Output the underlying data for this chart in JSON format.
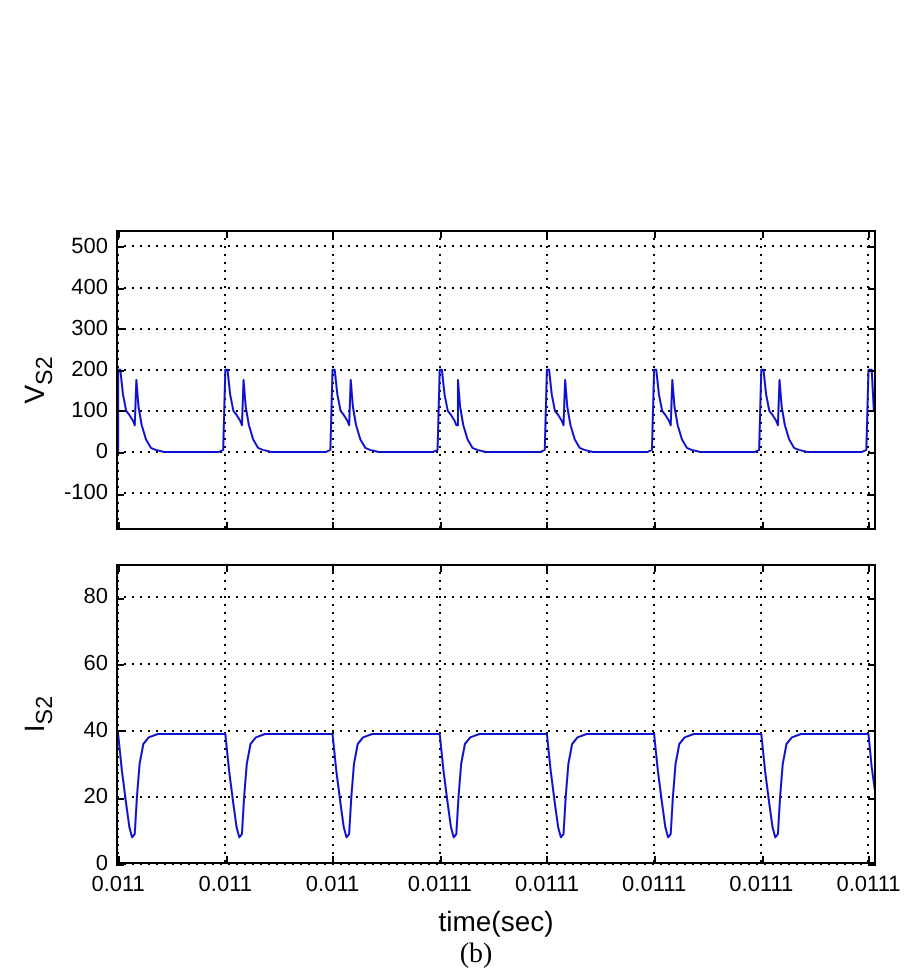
{
  "chart_data": [
    {
      "type": "line",
      "ylabel": "V$_{S2}$",
      "color": "#1010d0",
      "grid": true,
      "tick_labels": "y",
      "xlim": [
        0.0109996,
        0.0111414
      ],
      "xticks": [
        {
          "value": 0.011,
          "label": null
        },
        {
          "value": 0.01102,
          "label": null
        },
        {
          "value": 0.01104,
          "label": null
        },
        {
          "value": 0.01106,
          "label": null
        },
        {
          "value": 0.01108,
          "label": null
        },
        {
          "value": 0.0111,
          "label": null
        },
        {
          "value": 0.01112,
          "label": null
        },
        {
          "value": 0.01114,
          "label": null
        }
      ],
      "ylim": [
        -190,
        540
      ],
      "yticks": [
        -100,
        0,
        100,
        200,
        300,
        400,
        500
      ],
      "x": [
        0.0109996,
        0.011,
        0.011,
        0.0110004,
        0.0110009,
        0.0110015,
        0.0110021,
        0.0110028,
        0.0110031,
        0.0110034,
        0.0110038,
        0.0110044,
        0.0110052,
        0.0110061,
        0.011007,
        0.0110086,
        0.0110188,
        0.0110196,
        0.01102,
        0.0110204,
        0.0110209,
        0.0110215,
        0.0110221,
        0.0110228,
        0.0110231,
        0.0110234,
        0.0110238,
        0.0110244,
        0.0110252,
        0.0110261,
        0.011027,
        0.0110286,
        0.0110388,
        0.0110396,
        0.01104,
        0.0110404,
        0.0110409,
        0.0110415,
        0.0110421,
        0.0110428,
        0.0110431,
        0.0110434,
        0.0110438,
        0.0110444,
        0.0110452,
        0.0110461,
        0.011047,
        0.0110486,
        0.0110588,
        0.0110596,
        0.01106,
        0.0110604,
        0.0110609,
        0.0110615,
        0.0110621,
        0.0110628,
        0.0110631,
        0.0110634,
        0.0110638,
        0.0110644,
        0.0110652,
        0.0110661,
        0.011067,
        0.0110686,
        0.0110788,
        0.0110796,
        0.01108,
        0.0110804,
        0.0110809,
        0.0110815,
        0.0110821,
        0.0110828,
        0.0110831,
        0.0110834,
        0.0110838,
        0.0110844,
        0.0110852,
        0.0110861,
        0.011087,
        0.0110886,
        0.0110988,
        0.0110996,
        0.0111,
        0.0111004,
        0.0111009,
        0.0111015,
        0.0111021,
        0.0111028,
        0.0111031,
        0.0111034,
        0.0111038,
        0.0111044,
        0.0111052,
        0.0111061,
        0.011107,
        0.0111086,
        0.0111188,
        0.0111196,
        0.01112,
        0.0111204,
        0.0111209,
        0.0111215,
        0.0111221,
        0.0111228,
        0.0111231,
        0.0111234,
        0.0111238,
        0.0111244,
        0.0111252,
        0.0111261,
        0.011127,
        0.0111286,
        0.0111388,
        0.0111396,
        0.01114,
        0.0111406,
        0.011141,
        0.0111414
      ],
      "values": [
        0,
        0,
        200,
        200,
        140,
        100,
        90,
        75,
        65,
        175,
        110,
        65,
        30,
        10,
        5,
        0,
        0,
        5,
        200,
        200,
        140,
        100,
        90,
        75,
        65,
        175,
        110,
        65,
        30,
        10,
        5,
        0,
        0,
        5,
        200,
        200,
        140,
        100,
        90,
        75,
        65,
        175,
        110,
        65,
        30,
        10,
        5,
        0,
        0,
        5,
        200,
        200,
        140,
        100,
        90,
        75,
        65,
        175,
        110,
        65,
        30,
        10,
        5,
        0,
        0,
        5,
        200,
        200,
        140,
        100,
        90,
        75,
        65,
        175,
        110,
        65,
        30,
        10,
        5,
        0,
        0,
        5,
        200,
        200,
        140,
        100,
        90,
        75,
        65,
        175,
        110,
        65,
        30,
        10,
        5,
        0,
        0,
        5,
        200,
        200,
        140,
        100,
        90,
        75,
        65,
        175,
        110,
        65,
        30,
        10,
        5,
        0,
        0,
        5,
        200,
        200,
        100,
        100
      ]
    },
    {
      "type": "line",
      "ylabel": "I$_{S2}$",
      "xlabel": "time(sec)",
      "annotations": [
        "(b)"
      ],
      "color": "#1010d0",
      "grid": true,
      "xlim": [
        0.0109996,
        0.0111414
      ],
      "xticks": [
        {
          "value": 0.011,
          "label": "0.011"
        },
        {
          "value": 0.01102,
          "label": "0.011"
        },
        {
          "value": 0.01104,
          "label": "0.011"
        },
        {
          "value": 0.01106,
          "label": "0.0111"
        },
        {
          "value": 0.01108,
          "label": "0.0111"
        },
        {
          "value": 0.0111,
          "label": "0.0111"
        },
        {
          "value": 0.01112,
          "label": "0.0111"
        },
        {
          "value": 0.01114,
          "label": "0.0111"
        }
      ],
      "ylim": [
        0,
        90
      ],
      "yticks": [
        0,
        20,
        40,
        60,
        80
      ],
      "x": [
        0.0109996,
        0.011,
        0.0110007,
        0.0110015,
        0.0110021,
        0.0110026,
        0.0110031,
        0.0110035,
        0.011004,
        0.0110047,
        0.0110057,
        0.0110074,
        0.01102,
        0.0110207,
        0.0110215,
        0.0110221,
        0.0110226,
        0.0110231,
        0.0110235,
        0.011024,
        0.0110247,
        0.0110257,
        0.0110274,
        0.01104,
        0.0110407,
        0.0110415,
        0.0110421,
        0.0110426,
        0.0110431,
        0.0110435,
        0.011044,
        0.0110447,
        0.0110457,
        0.0110474,
        0.01106,
        0.0110607,
        0.0110615,
        0.0110621,
        0.0110626,
        0.0110631,
        0.0110635,
        0.011064,
        0.0110647,
        0.0110657,
        0.0110674,
        0.01108,
        0.0110807,
        0.0110815,
        0.0110821,
        0.0110826,
        0.0110831,
        0.0110835,
        0.011084,
        0.0110847,
        0.0110857,
        0.0110874,
        0.0111,
        0.0111007,
        0.0111015,
        0.0111021,
        0.0111026,
        0.0111031,
        0.0111035,
        0.011104,
        0.0111047,
        0.0111057,
        0.0111074,
        0.01112,
        0.0111207,
        0.0111215,
        0.0111221,
        0.0111226,
        0.0111231,
        0.0111235,
        0.011124,
        0.0111247,
        0.0111257,
        0.0111274,
        0.01114,
        0.0111406,
        0.0111413
      ],
      "values": [
        39,
        39,
        28,
        18,
        11,
        8,
        9,
        20,
        30,
        36,
        38,
        39,
        39,
        28,
        18,
        11,
        8,
        9,
        20,
        30,
        36,
        38,
        39,
        39,
        28,
        18,
        11,
        8,
        9,
        20,
        30,
        36,
        38,
        39,
        39,
        28,
        18,
        11,
        8,
        9,
        20,
        30,
        36,
        38,
        39,
        39,
        28,
        18,
        11,
        8,
        9,
        20,
        30,
        36,
        38,
        39,
        39,
        28,
        18,
        11,
        8,
        9,
        20,
        30,
        36,
        38,
        39,
        39,
        28,
        18,
        11,
        8,
        9,
        20,
        30,
        36,
        38,
        39,
        39,
        29,
        21
      ]
    }
  ]
}
